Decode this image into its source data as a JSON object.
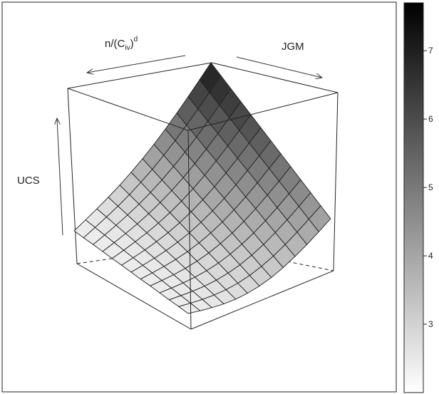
{
  "chart_data": {
    "type": "surface-3d",
    "axes": {
      "x": "n/(C",
      "x_sub": "iv",
      "x_sup": "d",
      "y": "JGM",
      "z": "UCS"
    },
    "grid_resolution": 12,
    "colorbar": {
      "ticks": [
        3,
        4,
        5,
        6,
        7
      ],
      "tick_labels": [
        "3",
        "4",
        "5",
        "6",
        "7"
      ],
      "range": [
        2.0,
        7.7
      ],
      "palette": "grayscale (white = low, black = high)"
    },
    "surface_z": {
      "min": 2.2,
      "max": 7.6,
      "shape": "convex, increasing in both horizontal axes"
    }
  }
}
